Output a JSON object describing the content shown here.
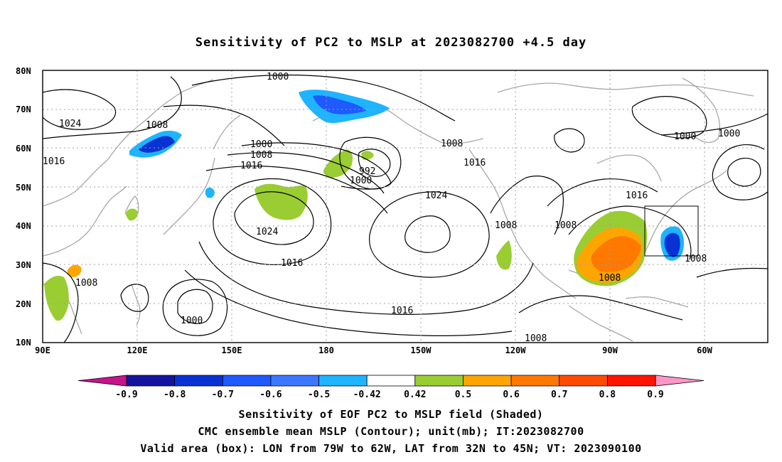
{
  "title": "Sensitivity of PC2 to MSLP at 2023082700 +4.5 day",
  "map": {
    "lat_labels": [
      "80N",
      "70N",
      "60N",
      "50N",
      "40N",
      "30N",
      "20N",
      "10N"
    ],
    "lon_labels": [
      "90E",
      "120E",
      "150E",
      "180",
      "150W",
      "120W",
      "90W",
      "60W"
    ],
    "contour_labels": [
      {
        "text": "1000"
      },
      {
        "text": "1024"
      },
      {
        "text": "1008"
      },
      {
        "text": "1016"
      },
      {
        "text": "1000"
      },
      {
        "text": "1008"
      },
      {
        "text": "1016"
      },
      {
        "text": "992"
      },
      {
        "text": "1000"
      },
      {
        "text": "1008"
      },
      {
        "text": "1016"
      },
      {
        "text": "1024"
      },
      {
        "text": "1024"
      },
      {
        "text": "1016"
      },
      {
        "text": "1008"
      },
      {
        "text": "1000"
      },
      {
        "text": "1016"
      },
      {
        "text": "1008"
      },
      {
        "text": "1008"
      },
      {
        "text": "1016"
      },
      {
        "text": "1008"
      },
      {
        "text": "1008"
      },
      {
        "text": "1008"
      },
      {
        "text": "1000"
      },
      {
        "text": "1000"
      }
    ],
    "shading_colors": {
      "negative_strong": "#0a0acd",
      "negative_mid": "#1e5aff",
      "negative_weak": "#00c8ff",
      "positive_weak": "#9acd32",
      "positive_mid": "#ff9600",
      "positive_strong": "#ff4b00"
    }
  },
  "colorbar": {
    "labels": [
      "-0.9",
      "-0.8",
      "-0.7",
      "-0.6",
      "-0.5",
      "-0.42",
      "0.42",
      "0.5",
      "0.6",
      "0.7",
      "0.8",
      "0.9"
    ],
    "colors": [
      "#1414a0",
      "#0a32d2",
      "#1e5aff",
      "#3c78ff",
      "#1eb4ff",
      "#ffffff",
      "#9acd32",
      "#ffa500",
      "#ff7800",
      "#ff4b00",
      "#ff1400"
    ],
    "left_arrow_color": "#c8148c",
    "right_arrow_color": "#ff96c8"
  },
  "captions": [
    "Sensitivity of EOF PC2 to MSLP field (Shaded)",
    "CMC ensemble mean MSLP (Contour); unit(mb); IT:2023082700",
    "Valid area (box): LON from 79W to 62W, LAT from 32N to 45N; VT: 2023090100"
  ]
}
